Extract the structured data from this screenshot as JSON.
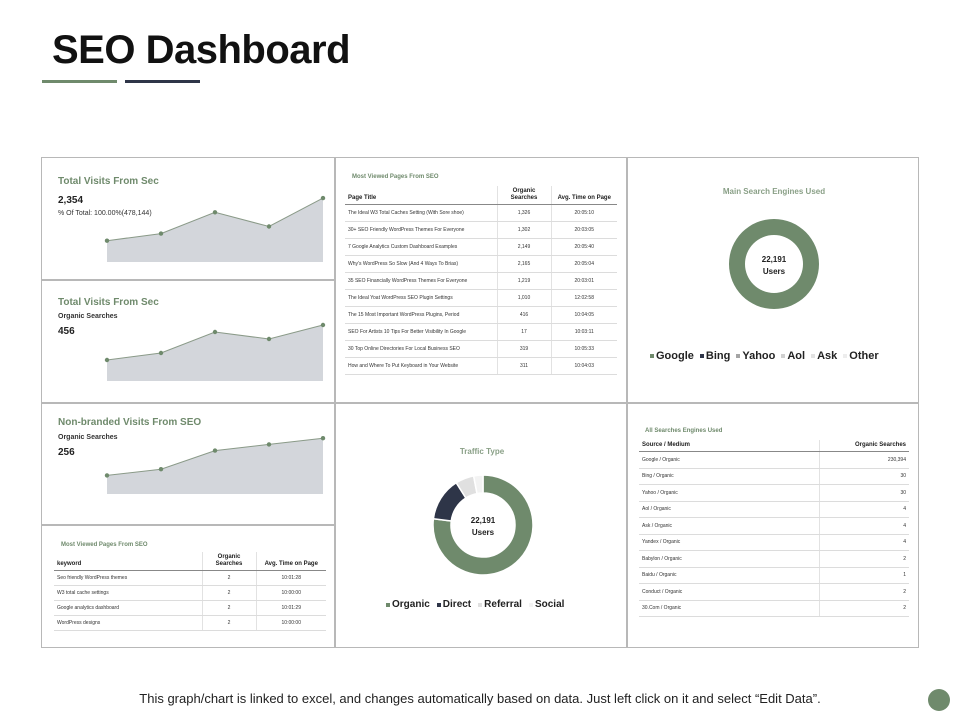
{
  "page": {
    "title": "SEO Dashboard",
    "footer": "This graph/chart is linked to excel, and changes automatically based on data. Just left click on it and select “Edit Data”.",
    "colors": {
      "accent": "#6f8a6c",
      "dark": "#2e3548",
      "area": "#d3d6db",
      "light": "#e7e7e7"
    }
  },
  "cards": [
    {
      "title": "Total Visits From Sec",
      "value": "2,354",
      "note": "% Of Total: 100.00%(478,144)"
    },
    {
      "title": "Total Visits From Sec",
      "sub": "Organic Searches",
      "value": "456"
    },
    {
      "title": "Non-branded Visits From SEO",
      "sub": "Organic Searches",
      "value": "256"
    }
  ],
  "chart_data": [
    {
      "type": "area",
      "title": "Total Visits From Sec",
      "x": [
        1,
        2,
        3,
        4,
        5
      ],
      "values": [
        3,
        4,
        7,
        5,
        9
      ],
      "ylim": [
        0,
        10
      ]
    },
    {
      "type": "area",
      "title": "Total Visits From Sec",
      "x": [
        1,
        2,
        3,
        4,
        5
      ],
      "values": [
        3,
        4,
        7,
        6,
        8
      ],
      "ylim": [
        0,
        10
      ]
    },
    {
      "type": "area",
      "title": "Non-branded Visits From SEO",
      "x": [
        1,
        2,
        3,
        4,
        5
      ],
      "values": [
        3,
        4,
        7,
        8,
        9
      ],
      "ylim": [
        0,
        10
      ]
    },
    {
      "type": "pie",
      "title": "Main Search Engines Used",
      "center_value": "22,191",
      "center_label": "Users",
      "categories": [
        "Google",
        "Bing",
        "Yahoo",
        "Aol",
        "Ask",
        "Other"
      ],
      "values": [
        100,
        0,
        0,
        0,
        0,
        0
      ],
      "colors": [
        "#6f8a6c",
        "#2e3548",
        "#a5a5a5",
        "#d0d0d0",
        "#e2e2e2",
        "#ededed"
      ]
    },
    {
      "type": "pie",
      "title": "Traffic Type",
      "center_value": "22,191",
      "center_label": "Users",
      "categories": [
        "Organic",
        "Direct",
        "Referral",
        "Social"
      ],
      "values": [
        77,
        14,
        6,
        3
      ],
      "colors": [
        "#6f8a6c",
        "#2e3548",
        "#e0e0e0",
        "#f3f3f3"
      ]
    }
  ],
  "top_pages": {
    "title": "Most Viewed Pages From SEO",
    "headers": [
      "Page Title",
      "Organic Searches",
      "Avg. Time on Page"
    ],
    "rows": [
      [
        "The Ideal W3 Total Caches Setting (With Sore shoe)",
        "1,326",
        "20:05:10"
      ],
      [
        "30+ SEO Friendly WordPress Themes For Everyone",
        "1,302",
        "20:03:05"
      ],
      [
        "7 Google Analytics Custom Dashboard Examples",
        "2,149",
        "20:05:40"
      ],
      [
        "Why's WordPress So Slow (And 4 Ways To Brias)",
        "2,165",
        "20:05:04"
      ],
      [
        "35 SEO Financially WordPress Themes For Everyone",
        "1,219",
        "20:03:01"
      ],
      [
        "The Ideal Yoat WordPress SEO Plugin Settings",
        "1,010",
        "12:02:58"
      ],
      [
        "The 15 Most Important WordPress Plugins, Period",
        "416",
        "10:04:05"
      ],
      [
        "SEO For Artists 10 Tips For Better Visibility In Google",
        "17",
        "10:03:11"
      ],
      [
        "30 Top Online Directories For Local Business SEO",
        "319",
        "10:05:33"
      ],
      [
        "How and Where To Put Keyboard in Your Website",
        "311",
        "10:04:03"
      ]
    ]
  },
  "keyword_pages": {
    "title": "Most Viewed Pages From SEO",
    "headers": [
      "keyword",
      "Organic Searches",
      "Avg. Time on Page"
    ],
    "rows": [
      [
        "Seo friendly WordPress themes",
        "2",
        "10:01:28"
      ],
      [
        "W3 total cache settings",
        "2",
        "10:00:00"
      ],
      [
        "Google analytics dashboard",
        "2",
        "10:01:29"
      ],
      [
        "WordPress designs",
        "2",
        "10:00:00"
      ]
    ]
  },
  "engines_table": {
    "title": "All Searches Engines Used",
    "headers": [
      "Source / Medium",
      "Organic Searches"
    ],
    "rows": [
      [
        "Google / Organic",
        "230,394"
      ],
      [
        "Bing / Organic",
        "30"
      ],
      [
        "Yahoo / Organic",
        "30"
      ],
      [
        "Aol / Organic",
        "4"
      ],
      [
        "Ask / Organic",
        "4"
      ],
      [
        "Yandex / Organic",
        "4"
      ],
      [
        "Babylon / Organic",
        "2"
      ],
      [
        "Baidu / Organic",
        "1"
      ],
      [
        "Conduct / Organic",
        "2"
      ],
      [
        "30.Com / Organic",
        "2"
      ]
    ]
  }
}
